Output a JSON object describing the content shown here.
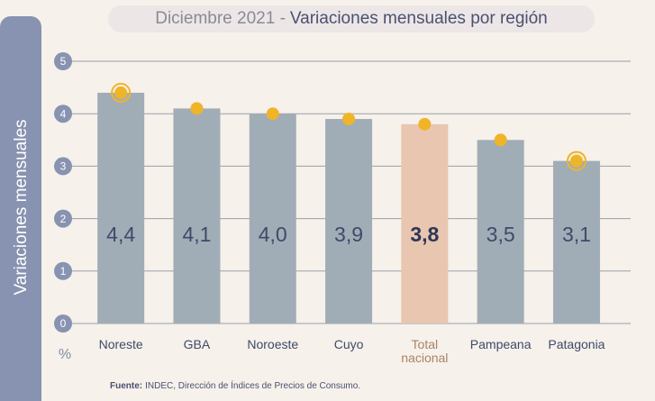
{
  "chart_data": {
    "type": "bar",
    "title_prefix": "Diciembre 2021 -",
    "title": "Variaciones mensuales por región",
    "y_label": "Variaciones  mensuales",
    "y_unit": "%",
    "categories": [
      "Noreste",
      "GBA",
      "Noroeste",
      "Cuyo",
      "Total nacional",
      "Pampeana",
      "Patagonia"
    ],
    "values": [
      4.4,
      4.1,
      4.0,
      3.9,
      3.8,
      3.5,
      3.1
    ],
    "value_labels": [
      "4,4",
      "4,1",
      "4,0",
      "3,9",
      "3,8",
      "3,5",
      "3,1"
    ],
    "color": "#a1adb6",
    "colors": [
      "#a1adb6",
      "#a1adb6",
      "#a1adb6",
      "#a1adb6",
      "#e8c6b0",
      "#a1adb6",
      "#a1adb6"
    ],
    "marker_color": "#f0b429",
    "ylim": [
      0,
      5
    ],
    "yticks": [
      0,
      1,
      2,
      3,
      4,
      5
    ],
    "grid": true,
    "source_label": "Fuente:",
    "source": "INDEC, Dirección de Índices de Precios de Consumo."
  }
}
